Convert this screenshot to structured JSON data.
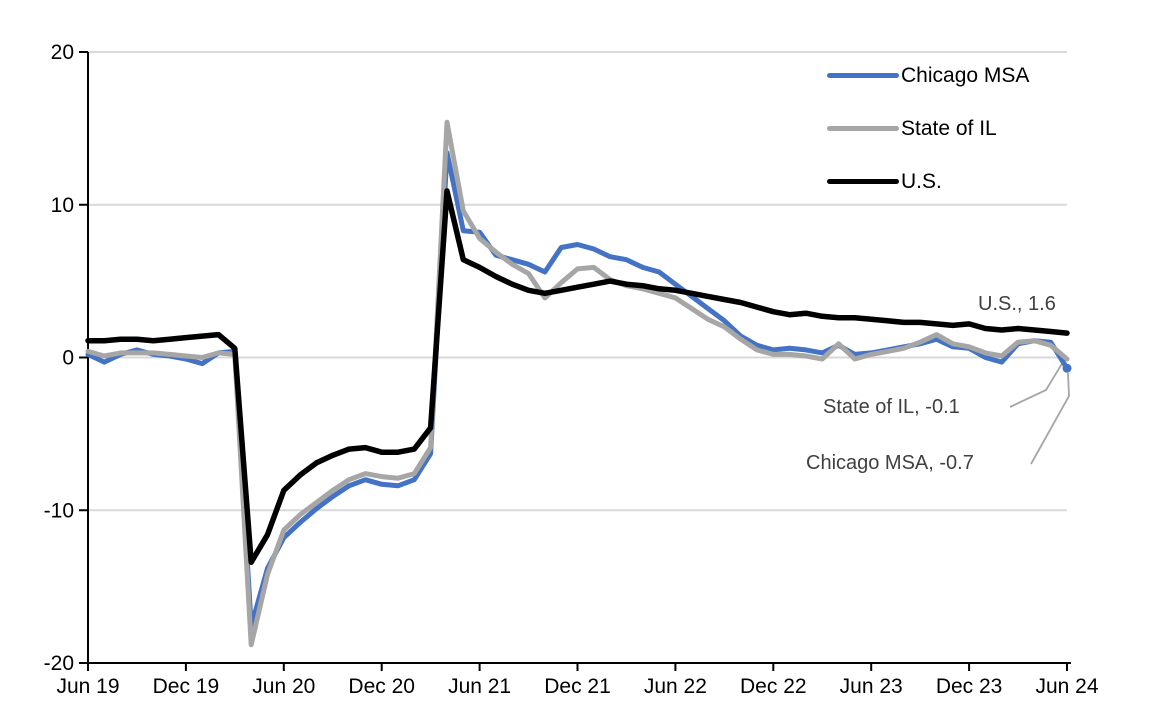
{
  "chart_data": {
    "type": "line",
    "title": "",
    "xlabel": "",
    "ylabel": "",
    "ylim": [
      -20,
      20
    ],
    "grid": true,
    "legend_position": "top-right",
    "yticks": [
      20,
      10,
      0,
      -10,
      -20
    ],
    "xtick_labels": [
      "Jun 19",
      "Dec 19",
      "Jun 20",
      "Dec 20",
      "Jun 21",
      "Dec 21",
      "Jun 22",
      "Dec 22",
      "Jun 23",
      "Dec 23",
      "Jun 24"
    ],
    "x": [
      "Jun 19",
      "Jul 19",
      "Aug 19",
      "Sep 19",
      "Oct 19",
      "Nov 19",
      "Dec 19",
      "Jan 20",
      "Feb 20",
      "Mar 20",
      "Apr 20",
      "May 20",
      "Jun 20",
      "Jul 20",
      "Aug 20",
      "Sep 20",
      "Oct 20",
      "Nov 20",
      "Dec 20",
      "Jan 21",
      "Feb 21",
      "Mar 21",
      "Apr 21",
      "May 21",
      "Jun 21",
      "Jul 21",
      "Aug 21",
      "Sep 21",
      "Oct 21",
      "Nov 21",
      "Dec 21",
      "Jan 22",
      "Feb 22",
      "Mar 22",
      "Apr 22",
      "May 22",
      "Jun 22",
      "Jul 22",
      "Aug 22",
      "Sep 22",
      "Oct 22",
      "Nov 22",
      "Dec 22",
      "Jan 23",
      "Feb 23",
      "Mar 23",
      "Apr 23",
      "May 23",
      "Jun 23",
      "Jul 23",
      "Aug 23",
      "Sep 23",
      "Oct 23",
      "Nov 23",
      "Dec 23",
      "Jan 24",
      "Feb 24",
      "Mar 24",
      "Apr 24",
      "May 24",
      "Jun 24"
    ],
    "series": [
      {
        "id": "chicago-msa",
        "name": "Chicago MSA",
        "color": "#4472C4",
        "end_marker": true,
        "last_value_label": "Chicago MSA, -0.7",
        "values": [
          0.2,
          -0.3,
          0.2,
          0.5,
          0.2,
          0.1,
          -0.1,
          -0.4,
          0.3,
          0.4,
          -17.6,
          -13.8,
          -11.8,
          -10.8,
          -9.9,
          -9.1,
          -8.4,
          -8.0,
          -8.3,
          -8.4,
          -8.0,
          -6.3,
          13.4,
          8.3,
          8.2,
          6.7,
          6.4,
          6.1,
          5.6,
          7.2,
          7.4,
          7.1,
          6.6,
          6.4,
          5.9,
          5.6,
          4.8,
          4.0,
          3.2,
          2.4,
          1.4,
          0.8,
          0.5,
          0.6,
          0.5,
          0.3,
          0.8,
          0.2,
          0.3,
          0.5,
          0.7,
          0.9,
          1.2,
          0.7,
          0.6,
          0.0,
          -0.3,
          0.9,
          1.1,
          1.0,
          -0.7
        ]
      },
      {
        "id": "state-il",
        "name": "State of IL",
        "color": "#A6A6A6",
        "end_marker": false,
        "last_value_label": "State of IL, -0.1",
        "values": [
          0.4,
          0.1,
          0.3,
          0.3,
          0.3,
          0.2,
          0.1,
          0.0,
          0.3,
          0.2,
          -18.8,
          -14.2,
          -11.3,
          -10.3,
          -9.5,
          -8.7,
          -8.0,
          -7.6,
          -7.8,
          -7.9,
          -7.6,
          -5.9,
          15.4,
          9.6,
          7.8,
          6.9,
          6.1,
          5.5,
          3.9,
          4.9,
          5.8,
          5.9,
          5.1,
          4.7,
          4.5,
          4.2,
          3.9,
          3.2,
          2.5,
          2.0,
          1.2,
          0.5,
          0.2,
          0.2,
          0.1,
          -0.1,
          0.9,
          -0.1,
          0.2,
          0.4,
          0.6,
          1.0,
          1.5,
          0.9,
          0.7,
          0.3,
          0.1,
          1.0,
          1.1,
          0.8,
          -0.1
        ]
      },
      {
        "id": "us",
        "name": "U.S.",
        "color": "#000000",
        "end_marker": false,
        "last_value_label": "U.S., 1.6",
        "values": [
          1.1,
          1.1,
          1.2,
          1.2,
          1.1,
          1.2,
          1.3,
          1.4,
          1.5,
          0.6,
          -13.4,
          -11.6,
          -8.7,
          -7.7,
          -6.9,
          -6.4,
          -6.0,
          -5.9,
          -6.2,
          -6.2,
          -6.0,
          -4.6,
          10.9,
          6.4,
          5.9,
          5.3,
          4.8,
          4.4,
          4.2,
          4.4,
          4.6,
          4.8,
          5.0,
          4.8,
          4.7,
          4.5,
          4.4,
          4.2,
          4.0,
          3.8,
          3.6,
          3.3,
          3.0,
          2.8,
          2.9,
          2.7,
          2.6,
          2.6,
          2.5,
          2.4,
          2.3,
          2.3,
          2.2,
          2.1,
          2.2,
          1.9,
          1.8,
          1.9,
          1.8,
          1.7,
          1.6
        ]
      }
    ],
    "colors": {
      "grid": "#D9D9D9",
      "axis": "#000000",
      "leader": "#A6A6A6",
      "annotation_text": "#404040"
    }
  },
  "annotations": {
    "us": "U.S., 1.6",
    "state_il": "State of IL, -0.1",
    "chicago_msa": "Chicago MSA, -0.7"
  }
}
